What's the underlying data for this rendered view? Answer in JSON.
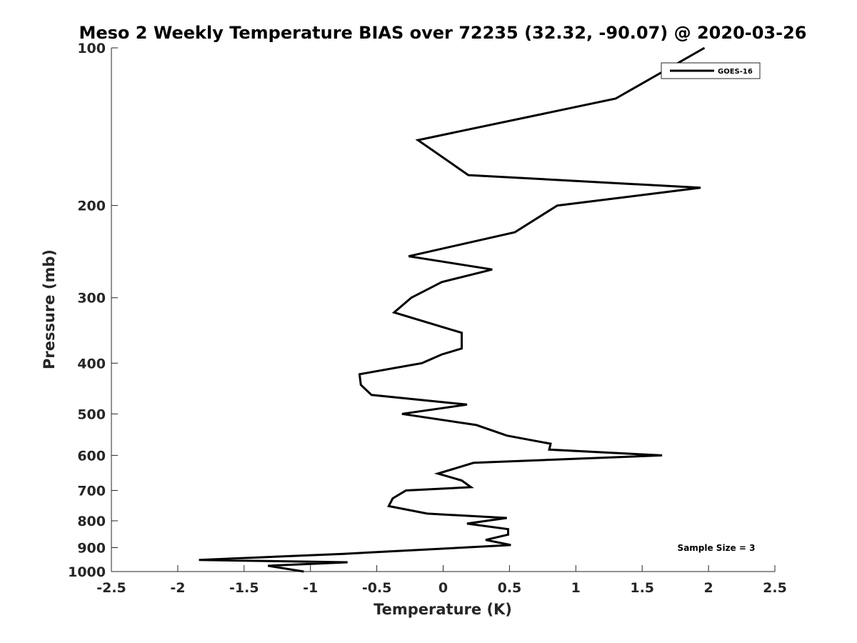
{
  "chart_data": {
    "type": "line",
    "title": "Meso 2 Weekly Temperature BIAS over 72235 (32.32, -90.07) @ 2020-03-26",
    "xlabel": "Temperature (K)",
    "ylabel": "Pressure (mb)",
    "xlim": [
      -2.5,
      2.5
    ],
    "ylim": [
      100,
      1000
    ],
    "y_scale": "log",
    "y_reversed": true,
    "x_ticks": [
      -2.5,
      -2,
      -1.5,
      -1,
      -0.5,
      0,
      0.5,
      1,
      1.5,
      2,
      2.5
    ],
    "x_tick_labels": [
      "-2.5",
      "-2",
      "-1.5",
      "-1",
      "-0.5",
      "0",
      "0.5",
      "1",
      "1.5",
      "2",
      "2.5"
    ],
    "y_ticks": [
      100,
      200,
      300,
      400,
      500,
      600,
      700,
      800,
      900,
      1000
    ],
    "y_tick_labels": [
      "100",
      "200",
      "300",
      "400",
      "500",
      "600",
      "700",
      "800",
      "900",
      "1000"
    ],
    "grid": false,
    "legend_position": "top-right",
    "line_color": "#000000",
    "series": [
      {
        "name": "GOES-16",
        "points": [
          {
            "x": 1.97,
            "p": 100
          },
          {
            "x": 1.3,
            "p": 125
          },
          {
            "x": -0.19,
            "p": 150
          },
          {
            "x": 0.19,
            "p": 175
          },
          {
            "x": 1.94,
            "p": 185
          },
          {
            "x": 0.86,
            "p": 200
          },
          {
            "x": 0.54,
            "p": 225
          },
          {
            "x": -0.26,
            "p": 250
          },
          {
            "x": 0.37,
            "p": 265
          },
          {
            "x": -0.01,
            "p": 280
          },
          {
            "x": -0.24,
            "p": 300
          },
          {
            "x": -0.37,
            "p": 320
          },
          {
            "x": 0.14,
            "p": 350
          },
          {
            "x": 0.14,
            "p": 375
          },
          {
            "x": -0.01,
            "p": 385
          },
          {
            "x": -0.16,
            "p": 400
          },
          {
            "x": -0.63,
            "p": 420
          },
          {
            "x": -0.62,
            "p": 440
          },
          {
            "x": -0.54,
            "p": 460
          },
          {
            "x": 0.18,
            "p": 480
          },
          {
            "x": -0.31,
            "p": 500
          },
          {
            "x": 0.25,
            "p": 525
          },
          {
            "x": 0.48,
            "p": 550
          },
          {
            "x": 0.81,
            "p": 570
          },
          {
            "x": 0.8,
            "p": 585
          },
          {
            "x": 1.65,
            "p": 600
          },
          {
            "x": 0.23,
            "p": 620
          },
          {
            "x": -0.04,
            "p": 650
          },
          {
            "x": 0.14,
            "p": 670
          },
          {
            "x": 0.21,
            "p": 690
          },
          {
            "x": -0.28,
            "p": 700
          },
          {
            "x": -0.38,
            "p": 725
          },
          {
            "x": -0.41,
            "p": 750
          },
          {
            "x": -0.12,
            "p": 775
          },
          {
            "x": 0.48,
            "p": 790
          },
          {
            "x": 0.18,
            "p": 810
          },
          {
            "x": 0.49,
            "p": 830
          },
          {
            "x": 0.49,
            "p": 850
          },
          {
            "x": 0.32,
            "p": 870
          },
          {
            "x": 0.51,
            "p": 890
          },
          {
            "x": -0.75,
            "p": 925
          },
          {
            "x": -1.84,
            "p": 950
          },
          {
            "x": -0.72,
            "p": 960
          },
          {
            "x": -1.32,
            "p": 975
          },
          {
            "x": -1.05,
            "p": 1000
          }
        ]
      }
    ],
    "legend": {
      "entries": [
        "GOES-16"
      ]
    },
    "annotations": [
      {
        "text": "Sample Size = 3",
        "position": "bottom-right"
      }
    ]
  }
}
